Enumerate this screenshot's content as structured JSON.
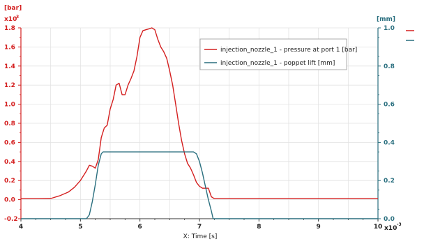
{
  "chart_data": {
    "type": "line",
    "title": "",
    "xlabel": "X: Time [s]",
    "x_exponent_label": "x10",
    "x_exponent": "-3",
    "xlim": [
      4,
      10
    ],
    "x_ticks": [
      "4",
      "5",
      "6",
      "7",
      "8",
      "9",
      "10"
    ],
    "left_axis": {
      "unit": "[bar]",
      "exponent_label": "x10",
      "exponent": "3",
      "ylim": [
        -0.2,
        1.8
      ],
      "ticks": [
        "-0.2",
        "0.0",
        "0.2",
        "0.4",
        "0.6",
        "0.8",
        "1.0",
        "1.2",
        "1.4",
        "1.6",
        "1.8"
      ],
      "color": "#d42020"
    },
    "right_axis": {
      "unit": "[mm]",
      "ylim": [
        0.0,
        1.0
      ],
      "ticks": [
        "0.0",
        "0.2",
        "0.4",
        "0.6",
        "0.8",
        "1.0"
      ],
      "color": "#2a6f7f"
    },
    "grid": true,
    "legend_position": "top-right",
    "series": [
      {
        "name": "injection_nozzle_1 - pressure at port 1 [bar]",
        "axis": "left",
        "color": "#d42020",
        "x": [
          4.0,
          4.3,
          4.5,
          4.65,
          4.8,
          4.9,
          5.0,
          5.1,
          5.15,
          5.2,
          5.25,
          5.3,
          5.35,
          5.4,
          5.45,
          5.5,
          5.55,
          5.6,
          5.65,
          5.7,
          5.75,
          5.8,
          5.85,
          5.9,
          5.95,
          6.0,
          6.05,
          6.1,
          6.15,
          6.2,
          6.25,
          6.3,
          6.35,
          6.4,
          6.45,
          6.5,
          6.55,
          6.6,
          6.65,
          6.7,
          6.75,
          6.8,
          6.85,
          6.9,
          6.95,
          7.0,
          7.05,
          7.1,
          7.15,
          7.2,
          7.25,
          8.0,
          9.0,
          10.0
        ],
        "values": [
          0.01,
          0.01,
          0.012,
          0.04,
          0.08,
          0.13,
          0.2,
          0.3,
          0.36,
          0.35,
          0.33,
          0.42,
          0.65,
          0.75,
          0.78,
          0.95,
          1.05,
          1.2,
          1.22,
          1.1,
          1.1,
          1.2,
          1.27,
          1.35,
          1.5,
          1.7,
          1.77,
          1.78,
          1.79,
          1.8,
          1.78,
          1.68,
          1.6,
          1.55,
          1.48,
          1.35,
          1.2,
          1.0,
          0.8,
          0.62,
          0.48,
          0.38,
          0.33,
          0.26,
          0.18,
          0.14,
          0.12,
          0.12,
          0.12,
          0.03,
          0.01,
          0.01,
          0.01,
          0.01
        ]
      },
      {
        "name": "injection_nozzle_1 - poppet lift [mm]",
        "axis": "right",
        "color": "#2a6f7f",
        "x": [
          4.0,
          5.1,
          5.15,
          5.2,
          5.25,
          5.3,
          5.35,
          5.38,
          6.9,
          6.95,
          7.0,
          7.05,
          7.1,
          7.15,
          7.2,
          7.23,
          10.0
        ],
        "values": [
          0.0,
          0.0,
          0.02,
          0.09,
          0.18,
          0.28,
          0.34,
          0.35,
          0.35,
          0.34,
          0.3,
          0.24,
          0.17,
          0.1,
          0.04,
          0.0,
          0.0
        ]
      }
    ]
  }
}
